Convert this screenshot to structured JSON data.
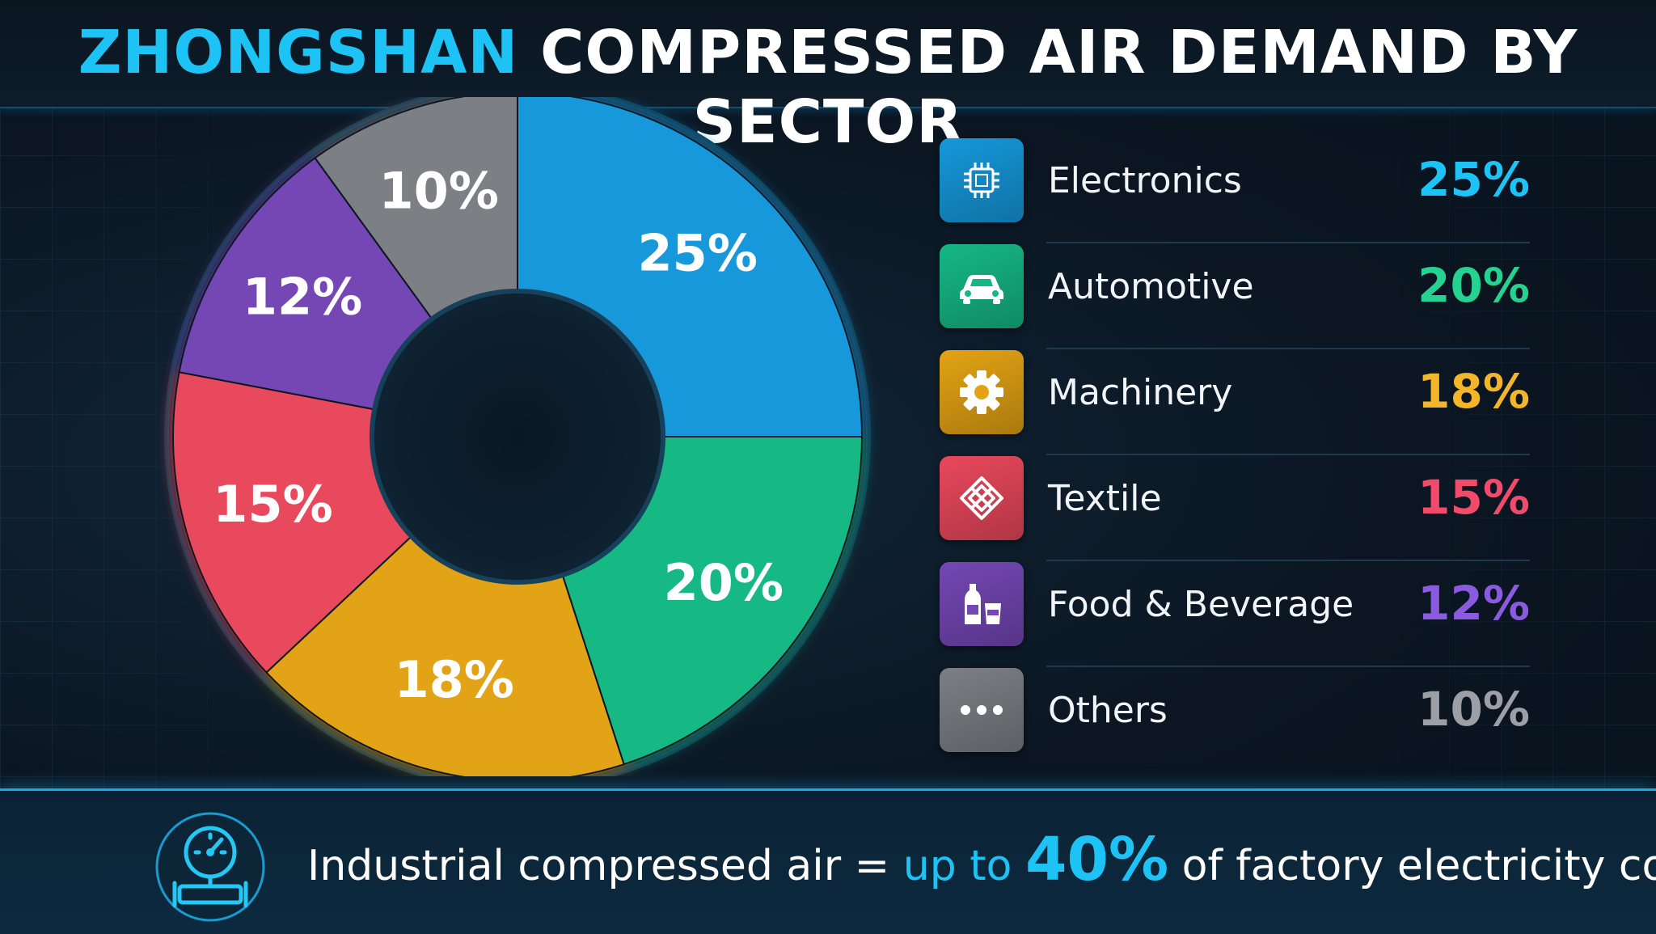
{
  "title": {
    "accent": "ZHONGSHAN",
    "rest": "COMPRESSED AIR DEMAND BY SECTOR"
  },
  "chart_data": {
    "type": "pie",
    "categories": [
      "Electronics",
      "Automotive",
      "Machinery",
      "Textile",
      "Food & Beverage",
      "Others"
    ],
    "values": [
      25,
      20,
      18,
      15,
      12,
      10
    ],
    "unit": "%",
    "labels": [
      "25%",
      "20%",
      "18%",
      "15%",
      "12%",
      "10%"
    ],
    "colors": [
      "#1598da",
      "#15b884",
      "#e3a314",
      "#e9485c",
      "#7447b4",
      "#7c7f84"
    ],
    "legend_colors": [
      "#1ec3f5",
      "#25d28f",
      "#f3b52a",
      "#f24a6a",
      "#8a5adf",
      "#9ca0a6"
    ],
    "donut": true,
    "legend_position": "right"
  },
  "legend": [
    {
      "label": "Electronics",
      "value": "25%",
      "icon": "chip-icon"
    },
    {
      "label": "Automotive",
      "value": "20%",
      "icon": "car-icon"
    },
    {
      "label": "Machinery",
      "value": "18%",
      "icon": "gear-icon"
    },
    {
      "label": "Textile",
      "value": "15%",
      "icon": "textile-pattern-icon"
    },
    {
      "label": "Food & Beverage",
      "value": "12%",
      "icon": "bottle-cup-icon"
    },
    {
      "label": "Others",
      "value": "10%",
      "icon": "ellipsis-icon"
    }
  ],
  "footer": {
    "text_before": "Industrial compressed air = ",
    "highlight": "up to ",
    "big_value": "40%",
    "text_after": " of factory electricity cost.",
    "icon": "pressure-gauge-icon"
  }
}
